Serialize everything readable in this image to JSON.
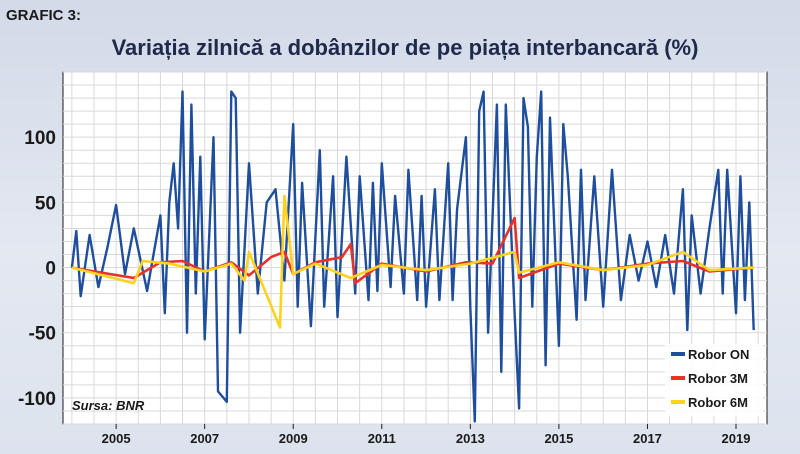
{
  "figure": {
    "tag": "GRAFIC 3:",
    "title": "Variația zilnică a dobânzilor de pe piața interbancară (%)",
    "source": "Sursa: BNR"
  },
  "chart_data": {
    "type": "line",
    "title": "Variația zilnică a dobânzilor de pe piața interbancară (%)",
    "xlabel": "",
    "ylabel": "",
    "xlim": [
      2003.8,
      2019.7
    ],
    "ylim": [
      -120,
      150
    ],
    "y_ticks": [
      -100,
      -50,
      0,
      50,
      100
    ],
    "y_tick_labels": [
      "-100",
      "-50",
      "0",
      "50",
      "100"
    ],
    "x_ticks": [
      2005,
      2007,
      2009,
      2011,
      2013,
      2015,
      2017,
      2019
    ],
    "x_tick_labels": [
      "2005",
      "2007",
      "2009",
      "2011",
      "2013",
      "2015",
      "2017",
      "2019"
    ],
    "grid": true,
    "legend_position": "bottom-right",
    "series": [
      {
        "name": "Robor ON",
        "color": "#1f4e9c",
        "points": [
          [
            2004.0,
            0
          ],
          [
            2004.1,
            28
          ],
          [
            2004.2,
            -22
          ],
          [
            2004.4,
            25
          ],
          [
            2004.6,
            -15
          ],
          [
            2004.8,
            15
          ],
          [
            2005.0,
            48
          ],
          [
            2005.2,
            -5
          ],
          [
            2005.4,
            30
          ],
          [
            2005.7,
            -18
          ],
          [
            2006.0,
            40
          ],
          [
            2006.1,
            -35
          ],
          [
            2006.2,
            50
          ],
          [
            2006.3,
            80
          ],
          [
            2006.4,
            30
          ],
          [
            2006.5,
            135
          ],
          [
            2006.6,
            -50
          ],
          [
            2006.7,
            125
          ],
          [
            2006.8,
            -20
          ],
          [
            2006.9,
            85
          ],
          [
            2007.0,
            -55
          ],
          [
            2007.2,
            100
          ],
          [
            2007.3,
            -95
          ],
          [
            2007.5,
            -103
          ],
          [
            2007.6,
            135
          ],
          [
            2007.7,
            130
          ],
          [
            2007.8,
            -50
          ],
          [
            2008.0,
            80
          ],
          [
            2008.2,
            -20
          ],
          [
            2008.4,
            50
          ],
          [
            2008.6,
            60
          ],
          [
            2008.8,
            -10
          ],
          [
            2009.0,
            110
          ],
          [
            2009.1,
            -30
          ],
          [
            2009.2,
            65
          ],
          [
            2009.4,
            -45
          ],
          [
            2009.6,
            90
          ],
          [
            2009.7,
            -30
          ],
          [
            2009.9,
            70
          ],
          [
            2010.0,
            -38
          ],
          [
            2010.2,
            85
          ],
          [
            2010.4,
            -20
          ],
          [
            2010.5,
            70
          ],
          [
            2010.7,
            -25
          ],
          [
            2010.8,
            65
          ],
          [
            2010.9,
            -18
          ],
          [
            2011.0,
            80
          ],
          [
            2011.2,
            -15
          ],
          [
            2011.3,
            55
          ],
          [
            2011.5,
            -20
          ],
          [
            2011.6,
            75
          ],
          [
            2011.8,
            -25
          ],
          [
            2011.9,
            55
          ],
          [
            2012.0,
            -30
          ],
          [
            2012.2,
            60
          ],
          [
            2012.3,
            -25
          ],
          [
            2012.5,
            80
          ],
          [
            2012.6,
            -25
          ],
          [
            2012.7,
            45
          ],
          [
            2012.9,
            100
          ],
          [
            2013.0,
            -30
          ],
          [
            2013.1,
            -118
          ],
          [
            2013.2,
            120
          ],
          [
            2013.3,
            135
          ],
          [
            2013.4,
            -50
          ],
          [
            2013.6,
            125
          ],
          [
            2013.7,
            -80
          ],
          [
            2013.8,
            125
          ],
          [
            2014.0,
            -35
          ],
          [
            2014.1,
            -108
          ],
          [
            2014.2,
            130
          ],
          [
            2014.3,
            108
          ],
          [
            2014.4,
            -30
          ],
          [
            2014.5,
            85
          ],
          [
            2014.6,
            135
          ],
          [
            2014.7,
            -75
          ],
          [
            2014.8,
            115
          ],
          [
            2015.0,
            -60
          ],
          [
            2015.1,
            110
          ],
          [
            2015.2,
            70
          ],
          [
            2015.4,
            -40
          ],
          [
            2015.5,
            75
          ],
          [
            2015.6,
            -25
          ],
          [
            2015.8,
            70
          ],
          [
            2016.0,
            -30
          ],
          [
            2016.2,
            75
          ],
          [
            2016.4,
            -25
          ],
          [
            2016.6,
            25
          ],
          [
            2016.8,
            -10
          ],
          [
            2017.0,
            20
          ],
          [
            2017.2,
            -15
          ],
          [
            2017.4,
            25
          ],
          [
            2017.6,
            -20
          ],
          [
            2017.8,
            60
          ],
          [
            2017.9,
            -48
          ],
          [
            2018.0,
            40
          ],
          [
            2018.2,
            -20
          ],
          [
            2018.4,
            30
          ],
          [
            2018.6,
            75
          ],
          [
            2018.7,
            -20
          ],
          [
            2018.8,
            75
          ],
          [
            2019.0,
            -35
          ],
          [
            2019.1,
            70
          ],
          [
            2019.2,
            -25
          ],
          [
            2019.3,
            50
          ],
          [
            2019.4,
            -48
          ]
        ]
      },
      {
        "name": "Robor 3M",
        "color": "#e8312a",
        "points": [
          [
            2004.0,
            0
          ],
          [
            2005.4,
            -8
          ],
          [
            2006.0,
            4
          ],
          [
            2006.5,
            5
          ],
          [
            2007.0,
            -3
          ],
          [
            2007.6,
            4
          ],
          [
            2008.0,
            -6
          ],
          [
            2008.5,
            8
          ],
          [
            2008.8,
            12
          ],
          [
            2009.0,
            -5
          ],
          [
            2009.5,
            4
          ],
          [
            2010.1,
            8
          ],
          [
            2010.3,
            18
          ],
          [
            2010.4,
            -12
          ],
          [
            2011.0,
            3
          ],
          [
            2012.0,
            -3
          ],
          [
            2012.9,
            4
          ],
          [
            2013.5,
            3
          ],
          [
            2014.0,
            38
          ],
          [
            2014.1,
            -8
          ],
          [
            2015.0,
            3
          ],
          [
            2016.0,
            -2
          ],
          [
            2017.0,
            3
          ],
          [
            2017.8,
            5
          ],
          [
            2018.4,
            -3
          ],
          [
            2019.4,
            0
          ]
        ]
      },
      {
        "name": "Robor 6M",
        "color": "#ffd21f",
        "points": [
          [
            2004.0,
            0
          ],
          [
            2005.4,
            -12
          ],
          [
            2005.6,
            5
          ],
          [
            2006.2,
            3
          ],
          [
            2007.0,
            -3
          ],
          [
            2007.6,
            3
          ],
          [
            2007.9,
            -10
          ],
          [
            2008.0,
            12
          ],
          [
            2008.7,
            -46
          ],
          [
            2008.8,
            55
          ],
          [
            2009.0,
            -5
          ],
          [
            2009.5,
            3
          ],
          [
            2010.3,
            -8
          ],
          [
            2011.0,
            2
          ],
          [
            2012.0,
            -2
          ],
          [
            2013.0,
            3
          ],
          [
            2014.0,
            12
          ],
          [
            2014.1,
            -4
          ],
          [
            2015.0,
            4
          ],
          [
            2016.0,
            -2
          ],
          [
            2017.0,
            2
          ],
          [
            2017.8,
            12
          ],
          [
            2018.4,
            -2
          ],
          [
            2019.4,
            0
          ]
        ]
      }
    ]
  }
}
